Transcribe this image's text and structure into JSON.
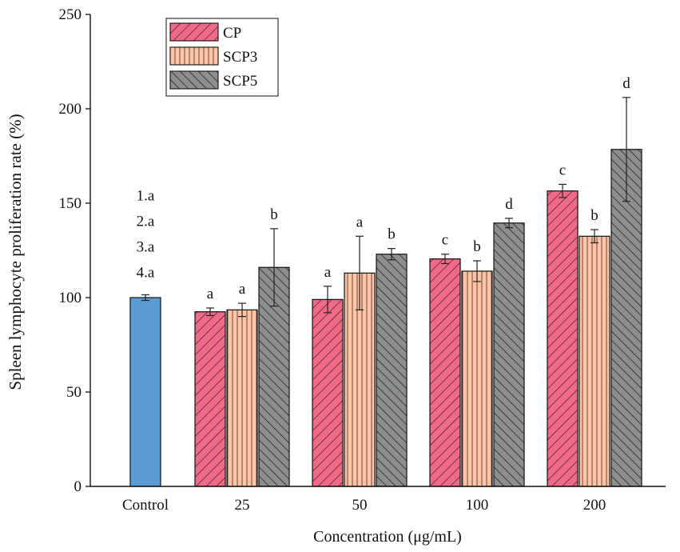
{
  "chart_data": {
    "type": "bar",
    "title": "",
    "xlabel": "Concentration (μg/mL)",
    "ylabel": "Spleen lymphocyte proliferation rate (%)",
    "ylim": [
      0,
      250
    ],
    "yticks": [
      0,
      50,
      100,
      150,
      200,
      250
    ],
    "grid": false,
    "legend_position": "top-left",
    "control": {
      "category": "Control",
      "value": 100,
      "error": 1.5,
      "color": "#5b9bd5",
      "labels": [
        "1.a",
        "2.a",
        "3.a",
        "4.a"
      ]
    },
    "categories": [
      "25",
      "50",
      "100",
      "200"
    ],
    "series": [
      {
        "name": "CP",
        "color": "#f06a88",
        "pattern": "diag-right",
        "values": [
          92.5,
          99,
          120.5,
          156.5
        ],
        "errors": [
          2,
          7,
          2.5,
          3.5
        ],
        "labels": [
          "a",
          "a",
          "c",
          "c"
        ]
      },
      {
        "name": "SCP3",
        "color": "#fcc4a4",
        "pattern": "vertical",
        "values": [
          93.5,
          113,
          114,
          132.5
        ],
        "errors": [
          3.5,
          19.5,
          5.5,
          3.5
        ],
        "labels": [
          "a",
          "a",
          "b",
          "b"
        ]
      },
      {
        "name": "SCP5",
        "color": "#8c8f8c",
        "pattern": "diag-left",
        "values": [
          116,
          123,
          139.5,
          178.5
        ],
        "errors": [
          20.5,
          3,
          2.5,
          27.5
        ],
        "labels": [
          "b",
          "b",
          "d",
          "d"
        ]
      }
    ]
  }
}
